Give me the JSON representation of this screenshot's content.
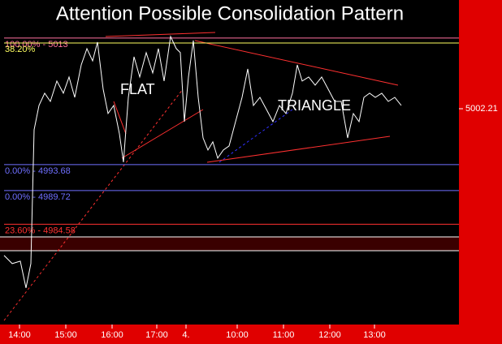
{
  "chart_data": {
    "type": "line",
    "title": "Attention Possible Consolidation Pattern",
    "annotations": [
      "FLAT",
      "TRIANGLE"
    ],
    "last_price": 5002.21,
    "xlim": [
      0,
      565
    ],
    "ylim": [
      4969.9,
      5018.8
    ],
    "xticks": [
      {
        "value": 24,
        "label": "14:00"
      },
      {
        "value": 81,
        "label": "15:00"
      },
      {
        "value": 138,
        "label": "16:00"
      },
      {
        "value": 193,
        "label": "17:00"
      },
      {
        "value": 229,
        "label": "4."
      },
      {
        "value": 292,
        "label": "10:00"
      },
      {
        "value": 349,
        "label": "11:00"
      },
      {
        "value": 406,
        "label": "12:00"
      },
      {
        "value": 461,
        "label": "13:00"
      }
    ],
    "levels": [
      {
        "label": "100.00% - 5013",
        "value": 5013,
        "color": "#ff6f9f"
      },
      {
        "label": "38.20%",
        "value": 5012.24,
        "color": "#ffff60"
      },
      {
        "label": "0.00% - 4993.68",
        "value": 4993.68,
        "color": "#6f6fff"
      },
      {
        "label": "0.00% - 4989.72",
        "value": 4989.72,
        "color": "#6f6fff"
      },
      {
        "label": "23.60% - 4984.58",
        "value": 4984.58,
        "color": "#ff3030"
      }
    ],
    "series": [
      {
        "color": "#ffffff",
        "x": [
          5,
          15,
          25,
          32,
          38,
          42,
          48,
          55,
          62,
          70,
          78,
          85,
          92,
          100,
          107,
          114,
          120,
          127,
          133,
          140,
          147,
          152,
          158,
          165,
          172,
          180,
          188,
          195,
          202,
          210,
          217,
          222,
          227,
          232,
          238,
          244,
          250,
          256,
          262,
          268,
          275,
          282,
          290,
          298,
          305,
          312,
          320,
          328,
          336,
          344,
          352,
          360,
          366,
          372,
          380,
          388,
          396,
          404,
          412,
          420,
          428,
          435,
          442,
          448,
          455,
          462,
          470,
          478,
          486,
          494
        ],
        "values": [
          4979.82,
          4978.58,
          4978.95,
          4974.87,
          4978.58,
          4999.0,
          5002.71,
          5004.57,
          5003.33,
          5006.43,
          5004.57,
          5007.05,
          5003.95,
          5008.9,
          5011.38,
          5009.52,
          5012.37,
          5005.19,
          5001.48,
          5002.71,
          4998.38,
          4994.05,
          5003.95,
          5010.14,
          5007.05,
          5010.76,
          5007.67,
          5011.38,
          5006.43,
          5013.23,
          5011.38,
          5010.76,
          5000.24,
          5007.05,
          5012.62,
          5003.95,
          4997.76,
          4995.91,
          4997.15,
          4994.67,
          4995.91,
          4996.53,
          5000.24,
          5003.95,
          5008.28,
          5002.71,
          5003.95,
          5002.1,
          5000.24,
          5002.71,
          5001.48,
          5004.57,
          5008.9,
          5006.43,
          5007.05,
          5005.81,
          5007.05,
          5005.19,
          5003.33,
          5003.33,
          4997.76,
          5001.48,
          5000.24,
          5003.95,
          5004.57,
          5003.95,
          5004.57,
          5003.33,
          5003.95,
          5002.71
        ]
      }
    ]
  }
}
